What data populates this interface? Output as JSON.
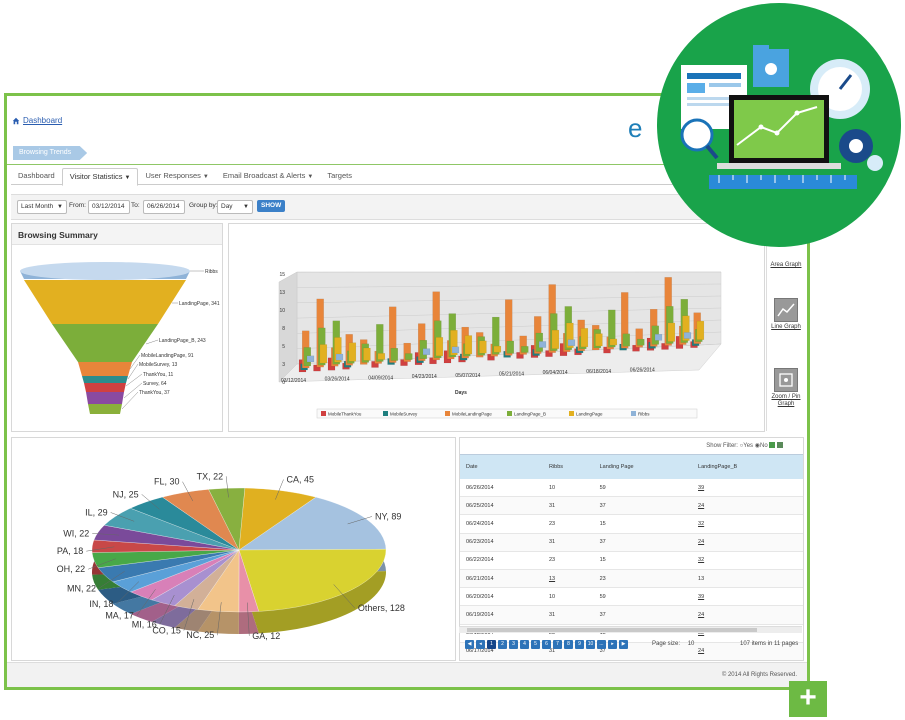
{
  "breadcrumb": {
    "label": "Dashboard"
  },
  "logo": {
    "text": "e"
  },
  "section_tag": "Browsing Trends",
  "tabs": [
    {
      "label": "Dashboard",
      "dropdown": false
    },
    {
      "label": "Visitor Statistics",
      "dropdown": true
    },
    {
      "label": "User Responses",
      "dropdown": true
    },
    {
      "label": "Email Broadcast & Alerts",
      "dropdown": true
    },
    {
      "label": "Targets",
      "dropdown": false
    }
  ],
  "filters": {
    "range": "Last Month",
    "from_label": "From:",
    "from_value": "03/12/2014",
    "to_label": "To:",
    "to_value": "06/26/2014",
    "group_label": "Group by:",
    "group_value": "Day",
    "show_label": "SHOW"
  },
  "browsing_summary": {
    "title": "Browsing Summary",
    "funnel": [
      {
        "label": "Ribbs",
        "color": "#8fb3d8"
      },
      {
        "label": "LandingPage, 341",
        "color": "#e2b020"
      },
      {
        "label": "LandingPage_B, 243",
        "color": "#7cae3a"
      },
      {
        "label": "MobileLandingPage, 91",
        "color": "#e8853a"
      },
      {
        "label": "MobileSurvey, 13",
        "color": "#2d8c8c"
      },
      {
        "label": "ThankYou, 11",
        "color": "#d04040"
      },
      {
        "label": "Survey, 64",
        "color": "#8a4aa0"
      },
      {
        "label": "ThankYou, 37",
        "color": "#8ab03a"
      }
    ]
  },
  "trend_chart": {
    "y_ticks": [
      "0",
      "3",
      "5",
      "8",
      "10",
      "13",
      "15"
    ],
    "x_ticks": [
      "03/12/2014",
      "03/26/2014",
      "04/09/2014",
      "04/23/2014",
      "05/07/2014",
      "05/21/2014",
      "06/04/2014",
      "06/18/2014",
      "06/26/2014"
    ],
    "xlabel": "Days",
    "legend": [
      {
        "label": "MobileThankYou",
        "color": "#d04040"
      },
      {
        "label": "MobileSurvey",
        "color": "#1f7f7f"
      },
      {
        "label": "MobileLandingPage",
        "color": "#e8853a"
      },
      {
        "label": "LandingPage_B",
        "color": "#7cae3a"
      },
      {
        "label": "LandingPage",
        "color": "#e2b020"
      },
      {
        "label": "Ribbs",
        "color": "#8fb3d8"
      }
    ]
  },
  "side_controls": [
    {
      "label": "Area Graph"
    },
    {
      "label": "Line Graph"
    },
    {
      "label": "Zoom / Pin Graph"
    }
  ],
  "pie_chart": {
    "slices": [
      {
        "label": "NY, 89",
        "value": 89,
        "color": "#a5c2e0"
      },
      {
        "label": "Others, 128",
        "value": 128,
        "color": "#d9d230"
      },
      {
        "label": "GA, 12",
        "value": 12,
        "color": "#e890a8"
      },
      {
        "label": "NC, 25",
        "value": 25,
        "color": "#f2c48a"
      },
      {
        "label": "CO, 15",
        "value": 15,
        "color": "#d2b098"
      },
      {
        "label": "MI, 16",
        "value": 16,
        "color": "#a890d0"
      },
      {
        "label": "MA, 17",
        "value": 17,
        "color": "#d880b8"
      },
      {
        "label": "IN, 18",
        "value": 18,
        "color": "#5aa0d8"
      },
      {
        "label": "MN, 22",
        "value": 22,
        "color": "#3a7ab0"
      },
      {
        "label": "OH, 22",
        "value": 22,
        "color": "#48a848"
      },
      {
        "label": "PA, 18",
        "value": 18,
        "color": "#c84848"
      },
      {
        "label": "WI, 22",
        "value": 22,
        "color": "#7a4a9a"
      },
      {
        "label": "IL, 29",
        "value": 29,
        "color": "#4aa0b0"
      },
      {
        "label": "NJ, 25",
        "value": 25,
        "color": "#2a8a9a"
      },
      {
        "label": "FL, 30",
        "value": 30,
        "color": "#e08850"
      },
      {
        "label": "TX, 22",
        "value": 22,
        "color": "#88b040"
      },
      {
        "label": "CA, 45",
        "value": 45,
        "color": "#e0b020"
      }
    ]
  },
  "table": {
    "show_filter_label": "Show Filter:",
    "yes_label": "Yes",
    "no_label": "No",
    "columns": [
      "Date",
      "Ribbs",
      "Landing Page",
      "LandingPage_B"
    ],
    "rows": [
      [
        "06/26/2014",
        "10",
        "59",
        "39"
      ],
      [
        "06/25/2014",
        "31",
        "37",
        "24"
      ],
      [
        "06/24/2014",
        "23",
        "15",
        "32"
      ],
      [
        "06/23/2014",
        "31",
        "37",
        "24"
      ],
      [
        "06/22/2014",
        "23",
        "15",
        "32"
      ],
      [
        "06/21/2014",
        "13",
        "23",
        "13"
      ],
      [
        "06/20/2014",
        "10",
        "59",
        "39"
      ],
      [
        "06/19/2014",
        "31",
        "37",
        "24"
      ],
      [
        "06/18/2014",
        "23",
        "15",
        "32"
      ],
      [
        "06/17/2014",
        "31",
        "37",
        "24"
      ]
    ],
    "underlined_cells": [
      [
        5,
        1
      ],
      [
        0,
        3
      ],
      [
        1,
        3
      ],
      [
        2,
        3
      ],
      [
        3,
        3
      ],
      [
        4,
        3
      ],
      [
        6,
        3
      ],
      [
        7,
        3
      ],
      [
        8,
        3
      ],
      [
        9,
        3
      ]
    ],
    "pages": [
      "1",
      "2",
      "3",
      "4",
      "5",
      "6",
      "7",
      "8",
      "9",
      "10",
      "..."
    ],
    "current_page": "1",
    "page_size_label": "Page size:",
    "page_size_value": "10",
    "items_info": "107 items in 11 pages"
  },
  "footer": {
    "copyright": "© 2014 All Rights Reserved."
  }
}
